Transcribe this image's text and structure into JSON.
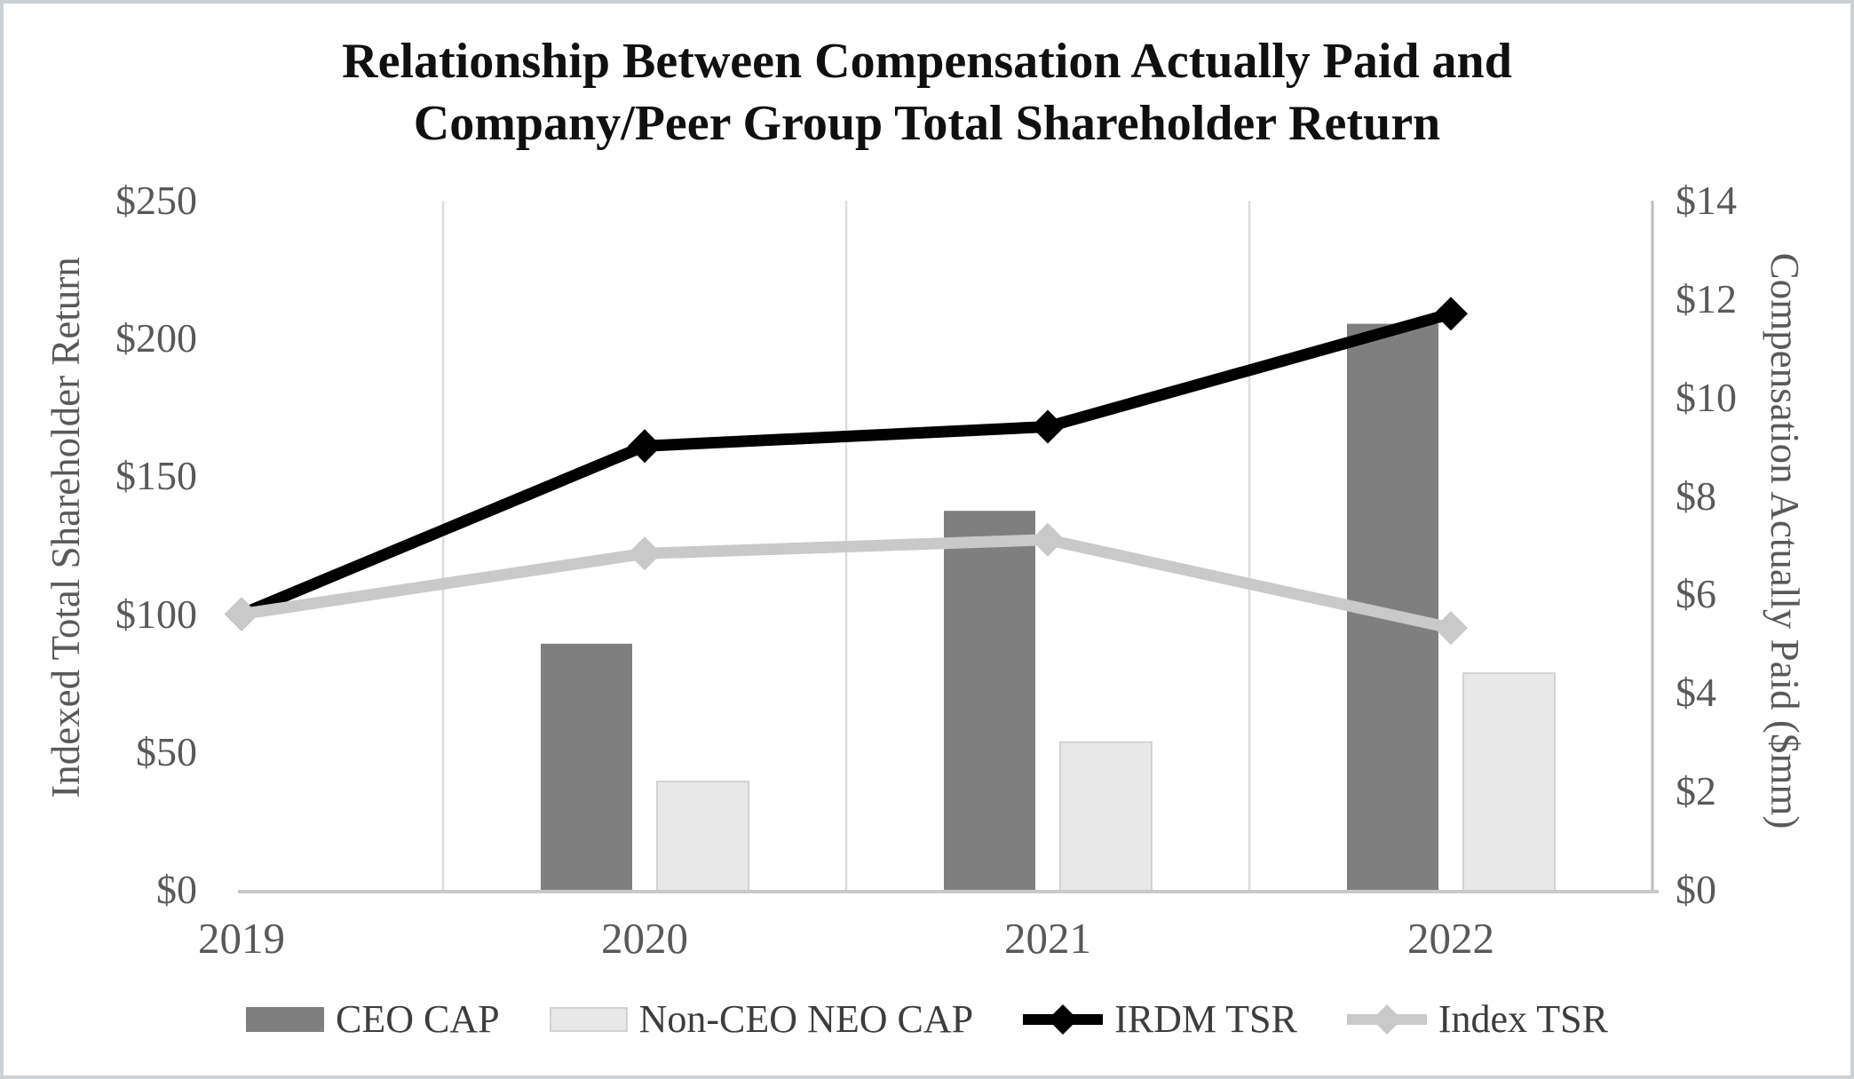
{
  "title": {
    "line1": "Relationship Between Compensation Actually Paid and",
    "line2": "Company/Peer Group Total Shareholder Return"
  },
  "chart_data": {
    "type": "bar+line combo",
    "categories": [
      "2019",
      "2020",
      "2021",
      "2022"
    ],
    "series": [
      {
        "name": "CEO CAP",
        "type": "bar",
        "axis": "right",
        "color": "#7f7f7f",
        "border": "none",
        "values": [
          null,
          5.0,
          7.7,
          11.5
        ]
      },
      {
        "name": "Non-CEO NEO CAP",
        "type": "bar",
        "axis": "right",
        "color": "#e8e8e8",
        "border": "#d2d2d2",
        "values": [
          null,
          2.2,
          3.0,
          4.4
        ]
      },
      {
        "name": "IRDM TSR",
        "type": "line",
        "axis": "left",
        "color": "#000000",
        "marker": "diamond",
        "values": [
          100,
          161,
          168,
          209
        ]
      },
      {
        "name": "Index TSR",
        "type": "line",
        "axis": "left",
        "color": "#c9c9c9",
        "marker": "diamond",
        "values": [
          100,
          122,
          127,
          95
        ]
      }
    ],
    "left_axis": {
      "title": "Indexed Total Shareholder Return",
      "min": 0,
      "max": 250,
      "step": 50,
      "tick_labels": [
        "$0",
        "$50",
        "$100",
        "$150",
        "$200",
        "$250"
      ]
    },
    "right_axis": {
      "title": "Compensation Actually Paid ($mm)",
      "min": 0,
      "max": 14,
      "step": 2,
      "tick_labels": [
        "$0",
        "$2",
        "$4",
        "$6",
        "$8",
        "$10",
        "$12",
        "$14"
      ]
    },
    "grid": "vertical gridlines between categories",
    "legend_position": "bottom"
  },
  "colors": {
    "gridline": "#dcdcdc",
    "x_axis_line": "#c9c9c9",
    "right_axis_line": "#bdbdbd",
    "tick_text": "#595959",
    "legend_text": "#3d3d3d",
    "title_text": "#101010",
    "page_border": "#cdd1d4"
  }
}
